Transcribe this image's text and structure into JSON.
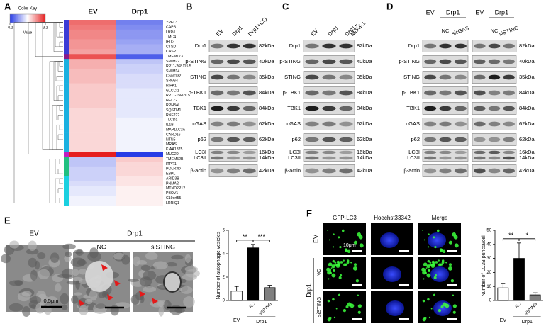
{
  "panels": {
    "A": {
      "letter": "A",
      "heatmap": {
        "key_title": "Color Key",
        "key_ticks": [
          -0.2,
          3.2
        ],
        "key_label": "Value",
        "columns": [
          "EV",
          "Drp1"
        ],
        "rows": [
          {
            "gene": "YPEL3",
            "values": [
              2.6,
              0.4
            ]
          },
          {
            "gene": "CAPS",
            "values": [
              2.5,
              0.5
            ]
          },
          {
            "gene": "LRG1",
            "values": [
              2.4,
              0.6
            ]
          },
          {
            "gene": "TMC4",
            "values": [
              2.4,
              0.6
            ]
          },
          {
            "gene": "IFIT3",
            "values": [
              2.3,
              0.7
            ]
          },
          {
            "gene": "CTSD",
            "values": [
              2.3,
              0.8
            ]
          },
          {
            "gene": "CASP1",
            "values": [
              2.2,
              0.8
            ]
          },
          {
            "gene": "TMEM173",
            "values": [
              2.8,
              0.1
            ],
            "label_color": "#e00000"
          },
          {
            "gene": "SMIM22",
            "values": [
              2.1,
              1.0
            ]
          },
          {
            "gene": "RP11-268J15.5",
            "values": [
              2.1,
              1.1
            ]
          },
          {
            "gene": "SMIM14",
            "values": [
              2.0,
              1.1
            ]
          },
          {
            "gene": "C6orf132",
            "values": [
              2.0,
              1.2
            ]
          },
          {
            "gene": "SPAG4",
            "values": [
              2.0,
              1.2
            ]
          },
          {
            "gene": "RIPK1",
            "values": [
              1.9,
              1.2
            ]
          },
          {
            "gene": "GLCCI1",
            "values": [
              1.9,
              1.3
            ]
          },
          {
            "gene": "RP11-15H20.5",
            "values": [
              1.9,
              1.3
            ]
          },
          {
            "gene": "HELZ2",
            "values": [
              1.9,
              1.3
            ]
          },
          {
            "gene": "RPH3AL",
            "values": [
              1.9,
              1.3
            ]
          },
          {
            "gene": "SQSTM1",
            "values": [
              1.8,
              1.3
            ]
          },
          {
            "gene": "RNF222",
            "values": [
              1.8,
              1.3
            ]
          },
          {
            "gene": "TLCD1",
            "values": [
              1.8,
              1.4
            ]
          },
          {
            "gene": "IL1B",
            "values": [
              1.8,
              1.4
            ]
          },
          {
            "gene": "MAP1LC3A",
            "values": [
              1.8,
              1.4
            ]
          },
          {
            "gene": "CARD16",
            "values": [
              1.8,
              1.4
            ]
          },
          {
            "gene": "NTN5",
            "values": [
              1.8,
              1.4
            ]
          },
          {
            "gene": "MRAS",
            "values": [
              1.8,
              1.4
            ]
          },
          {
            "gene": "KIAA1875",
            "values": [
              1.8,
              1.4
            ]
          },
          {
            "gene": "MUC20",
            "values": [
              3.2,
              -0.2
            ]
          },
          {
            "gene": "TMEM52B",
            "values": [
              1.0,
              1.9
            ]
          },
          {
            "gene": "ITPR1",
            "values": [
              1.0,
              1.8
            ]
          },
          {
            "gene": "POLR3D",
            "values": [
              1.1,
              1.8
            ]
          },
          {
            "gene": "EBPL",
            "values": [
              1.1,
              1.8
            ]
          },
          {
            "gene": "ARID3B",
            "values": [
              1.1,
              1.7
            ]
          },
          {
            "gene": "PNMA2",
            "values": [
              1.2,
              1.7
            ]
          },
          {
            "gene": "MTND2P12",
            "values": [
              1.3,
              1.6
            ]
          },
          {
            "gene": "PBOV1",
            "values": [
              1.3,
              1.6
            ]
          },
          {
            "gene": "C19orf55",
            "values": [
              1.4,
              1.6
            ]
          },
          {
            "gene": "LRRIQ1",
            "values": [
              1.4,
              1.6
            ]
          }
        ]
      }
    },
    "B": {
      "letter": "B",
      "headers": [
        [
          "EV"
        ],
        [
          "Drp1"
        ],
        [
          "Drp1+CQ"
        ]
      ],
      "rows": [
        {
          "labels": [
            "Drp1"
          ],
          "kda": [
            "82kDa"
          ]
        },
        {
          "labels": [
            "p-STING"
          ],
          "kda": [
            "40kDa"
          ]
        },
        {
          "labels": [
            "STING"
          ],
          "kda": [
            "35kDa"
          ]
        },
        {
          "labels": [
            "p-TBK1"
          ],
          "kda": [
            "84kDa"
          ]
        },
        {
          "labels": [
            "TBK1"
          ],
          "kda": [
            "84kDa"
          ]
        },
        {
          "labels": [
            "cGAS"
          ],
          "kda": [
            "62kDa"
          ]
        },
        {
          "labels": [
            "p62"
          ],
          "kda": [
            "62kDa"
          ]
        },
        {
          "labels": [
            "LC3I",
            "LC3II"
          ],
          "kda": [
            "16kDa",
            "14kDa"
          ]
        },
        {
          "labels": [
            "β-actin"
          ],
          "kda": [
            "42kDa"
          ]
        }
      ]
    },
    "C": {
      "letter": "C",
      "headers": [
        [
          "EV"
        ],
        [
          "Drp1"
        ],
        [
          "Drp1+",
          "Mdivi-1"
        ]
      ],
      "rows": [
        {
          "labels": [
            "Drp1"
          ],
          "kda": [
            "82kDa"
          ]
        },
        {
          "labels": [
            "p-STING"
          ],
          "kda": [
            "40kDa"
          ]
        },
        {
          "labels": [
            "STING"
          ],
          "kda": [
            "35kDa"
          ]
        },
        {
          "labels": [
            "p-TBK1"
          ],
          "kda": [
            "84kDa"
          ]
        },
        {
          "labels": [
            "TBK1"
          ],
          "kda": [
            "84kDa"
          ]
        },
        {
          "labels": [
            "cGAS"
          ],
          "kda": [
            "62kDa"
          ]
        },
        {
          "labels": [
            "p62"
          ],
          "kda": [
            "62kDa"
          ]
        },
        {
          "labels": [
            "LC3I",
            "LC3II"
          ],
          "kda": [
            "16kDa",
            "14kDa"
          ]
        },
        {
          "labels": [
            "β-actin"
          ],
          "kda": [
            "42kDa"
          ]
        }
      ]
    },
    "D": {
      "letter": "D",
      "groups": [
        {
          "top": "EV"
        },
        {
          "top": "Drp1",
          "subs": [
            "NC",
            "sicGAS"
          ]
        },
        {
          "top": "EV"
        },
        {
          "top": "Drp1",
          "subs": [
            "NC",
            "siSTING"
          ]
        }
      ],
      "rows": [
        {
          "labels": [
            "Drp1"
          ],
          "kda": [
            "82kDa"
          ]
        },
        {
          "labels": [
            "p-STING"
          ],
          "kda": [
            "40kDa"
          ]
        },
        {
          "labels": [
            "STING"
          ],
          "kda": [
            "35kDa"
          ]
        },
        {
          "labels": [
            "p-TBK1"
          ],
          "kda": [
            "84kDa"
          ]
        },
        {
          "labels": [
            "TBK1"
          ],
          "kda": [
            "84kDa"
          ]
        },
        {
          "labels": [
            "cGAS"
          ],
          "kda": [
            "62kDa"
          ]
        },
        {
          "labels": [
            "p62"
          ],
          "kda": [
            "62kDa"
          ]
        },
        {
          "labels": [
            "LC3I",
            "LC3II"
          ],
          "kda": [
            "16kDa",
            "14kDa"
          ]
        },
        {
          "labels": [
            "β-actin"
          ],
          "kda": [
            "42kDa"
          ]
        }
      ]
    },
    "E": {
      "letter": "E",
      "ev": "EV",
      "drp1": "Drp1",
      "subs": [
        "NC",
        "siSTING"
      ],
      "scale_bar": "0.5μm"
    },
    "F": {
      "letter": "F",
      "columns": [
        "GFP-LC3",
        "Hoechst33342",
        "Merge"
      ],
      "ev": "EV",
      "drp1": "Drp1",
      "subs": [
        "NC",
        "siSTING"
      ],
      "scale_bar": "10μm"
    }
  },
  "chart_data": [
    {
      "type": "bar",
      "y_label": "Number of autophagic vesicles",
      "categories": [
        "EV",
        "NC",
        "siSTING"
      ],
      "group_label": "Drp1",
      "values": [
        0.8,
        4.5,
        1.1
      ],
      "errors": [
        0.4,
        0.3,
        0.2
      ],
      "ylim": [
        0,
        6
      ],
      "yticks": [
        0,
        2,
        4,
        6
      ],
      "colors": [
        "#ffffff",
        "#000000",
        "#808080"
      ],
      "significance": [
        "**",
        "***"
      ]
    },
    {
      "type": "bar",
      "y_label": "Number of LC3B puncta/cell",
      "categories": [
        "EV",
        "NC",
        "siSTING"
      ],
      "group_label": "Drp1",
      "values": [
        9,
        30,
        4
      ],
      "errors": [
        3,
        11,
        1.5
      ],
      "ylim": [
        0,
        50
      ],
      "yticks": [
        0,
        10,
        20,
        30,
        40,
        50
      ],
      "colors": [
        "#ffffff",
        "#000000",
        "#808080"
      ],
      "significance": [
        "**",
        "*"
      ]
    }
  ]
}
